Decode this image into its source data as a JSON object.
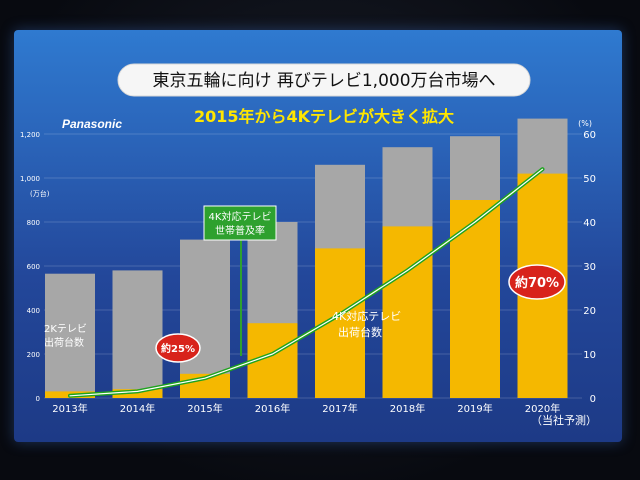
{
  "slide": {
    "brand": "Panasonic",
    "headline": "東京五輪に向け 再びテレビ1,000万台市場へ",
    "subheadline": "2015年から4Kテレビが大きく拡大",
    "footnote": "（当社予測）"
  },
  "chart_data": {
    "type": "bar",
    "categories": [
      "2013年",
      "2014年",
      "2015年",
      "2016年",
      "2017年",
      "2018年",
      "2019年",
      "2020年"
    ],
    "series": [
      {
        "name": "",
        "role": "total",
        "values": [
          565,
          580,
          720,
          800,
          1060,
          1140,
          1190,
          1270
        ]
      },
      {
        "name": "",
        "role": "4k",
        "values": [
          30,
          40,
          110,
          340,
          680,
          780,
          900,
          1020
        ]
      }
    ],
    "line_series": {
      "name": "4K対応テレビ 世帯普及率",
      "unit": "%",
      "values": [
        0.5,
        1.5,
        4.5,
        10,
        19,
        29,
        40,
        52
      ]
    },
    "left_axis": {
      "unit": "(万台)",
      "ylim": [
        0,
        1200
      ],
      "ticks": [
        "0",
        "200",
        "400",
        "600",
        "800",
        "1,000",
        "1,200"
      ]
    },
    "right_axis": {
      "unit": "(%)",
      "ylim": [
        0,
        60
      ],
      "ticks": [
        "0",
        "10",
        "20",
        "30",
        "40",
        "50",
        "60"
      ]
    },
    "annotations": {
      "tv_label_line1": "2Kテレビ",
      "tv_label_line2": "出荷台数",
      "k4_label_line1": "4K対応テレビ",
      "k4_label_line2": "出荷台数",
      "rate_label_line1": "4K対応テレビ",
      "rate_label_line2": "世帯普及率",
      "badge_2015": "約25%",
      "badge_2020": "約70%"
    },
    "colors": {
      "total_bar": "#a7a7a7",
      "k4_bar": "#f5b800",
      "line": "#1ea31e",
      "badge": "#d8231b",
      "label_box": "#2ea12e",
      "subheadline": "#ffe600"
    }
  }
}
